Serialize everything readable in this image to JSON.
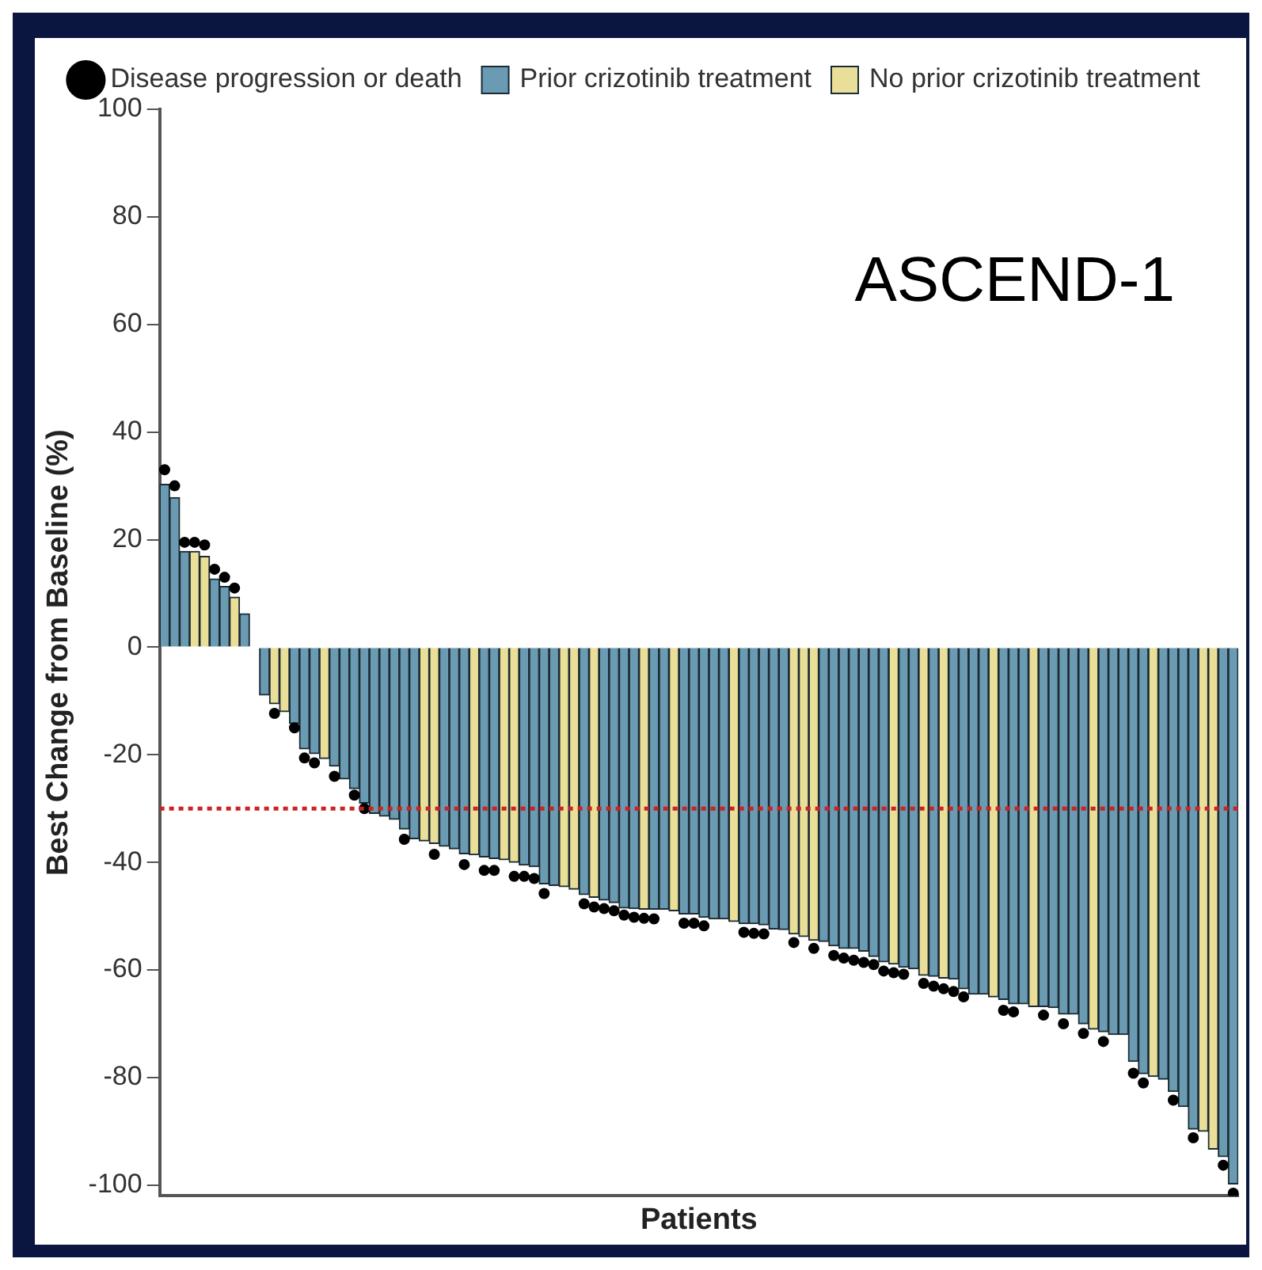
{
  "chart_data": {
    "type": "bar",
    "xlabel": "Patients",
    "ylabel": "Best Change from Baseline (%)",
    "annotations": [
      "ASCEND-1"
    ],
    "categories": [
      null,
      null,
      null,
      null,
      null,
      null,
      null,
      null,
      null,
      null,
      null,
      null,
      null,
      null,
      null,
      null,
      null,
      null,
      null,
      null,
      null,
      null,
      null,
      null,
      null,
      null,
      null,
      null,
      null,
      null,
      null,
      null,
      null,
      null,
      null,
      null,
      null,
      null,
      null,
      null,
      null,
      null,
      null,
      null,
      null,
      null,
      null,
      null,
      null,
      null,
      null,
      null,
      null,
      null,
      null,
      null,
      null,
      null,
      null,
      null,
      null,
      null,
      null,
      null,
      null,
      null,
      null,
      null,
      null,
      null,
      null,
      null,
      null,
      null,
      null,
      null,
      null,
      null,
      null,
      null,
      null,
      null,
      null,
      null,
      null,
      null,
      null,
      null,
      null,
      null,
      null,
      null,
      null,
      null,
      null,
      null,
      null,
      null,
      null,
      null,
      null,
      null,
      null,
      null,
      null,
      null,
      null,
      null
    ],
    "series": [
      {
        "name": "Prior crizotinib treatment",
        "color": "#6a9bb2",
        "values": [
          30.3,
          27.8,
          17.8,
          null,
          null,
          12.7,
          11.3,
          null,
          6.2,
          null,
          -8.9,
          null,
          null,
          -14.2,
          -18.9,
          -19.8,
          null,
          -22.1,
          -24.5,
          -26.3,
          -29,
          -30.9,
          -31.4,
          -32,
          -33.8,
          -35.6,
          null,
          null,
          -37,
          -37.5,
          -38.4,
          null,
          -39,
          -39.3,
          null,
          null,
          -40.5,
          -40.8,
          -44,
          -44.3,
          null,
          null,
          -46,
          null,
          -47,
          -47.5,
          -48.5,
          -48.6,
          null,
          -48.7,
          -48.7,
          null,
          -49.6,
          -49.6,
          -50.2,
          -50.5,
          -50.5,
          null,
          -51.4,
          -51.4,
          -51.6,
          -52.4,
          -52.5,
          null,
          null,
          null,
          -54.7,
          -55.5,
          -56,
          -56,
          -56.5,
          -57.5,
          -58.5,
          null,
          -59.5,
          -59.8,
          null,
          -61.2,
          null,
          -61.7,
          -63.5,
          -64.5,
          -64.5,
          null,
          -65.5,
          -66.3,
          -66.3,
          null,
          -66.8,
          -67,
          -68.2,
          -68.2,
          -70,
          null,
          -71.5,
          -72,
          -72,
          -77,
          -79.3,
          null,
          -80.3,
          -82.6,
          -85.4,
          -89.6,
          null,
          null,
          -94.7,
          -99.8
        ]
      },
      {
        "name": "No prior crizotinib treatment",
        "color": "#e9df98",
        "values": [
          null,
          null,
          null,
          17.8,
          16.9,
          null,
          null,
          9.3,
          null,
          null,
          null,
          -10.5,
          -12,
          null,
          null,
          null,
          -20.7,
          null,
          null,
          null,
          null,
          null,
          null,
          null,
          null,
          null,
          -36,
          -36.5,
          null,
          null,
          null,
          -38.6,
          null,
          null,
          -39.5,
          -40,
          null,
          null,
          null,
          null,
          -44.5,
          -45,
          null,
          -46.5,
          null,
          null,
          null,
          null,
          -48.7,
          null,
          null,
          -49,
          null,
          null,
          null,
          null,
          null,
          -51,
          null,
          null,
          null,
          null,
          null,
          -53.3,
          -53.8,
          -54.5,
          null,
          null,
          null,
          null,
          null,
          null,
          null,
          -58.9,
          null,
          null,
          -61,
          null,
          -61.5,
          null,
          null,
          null,
          null,
          -65,
          null,
          null,
          null,
          -66.8,
          null,
          null,
          null,
          null,
          null,
          -71,
          null,
          null,
          null,
          null,
          null,
          -79.8,
          null,
          null,
          null,
          null,
          -90,
          -93.3,
          null,
          null
        ]
      },
      {
        "name": "Disease progression or death",
        "type": "scatter",
        "color": "#000000",
        "values": [
          33,
          30,
          19.5,
          19.5,
          19,
          14.5,
          13,
          11,
          null,
          null,
          null,
          -12.3,
          null,
          -15,
          -20.6,
          -21.5,
          null,
          -24,
          null,
          -27.5,
          -30,
          null,
          null,
          null,
          -35.7,
          null,
          null,
          -38.5,
          null,
          null,
          -40.4,
          null,
          -41.5,
          -41.5,
          null,
          -42.6,
          -42.6,
          -43,
          -45.8,
          null,
          null,
          null,
          -47.7,
          -48.3,
          -48.6,
          -49,
          -49.8,
          -50.2,
          -50.4,
          -50.5,
          null,
          null,
          -51.3,
          -51.3,
          -51.8,
          null,
          null,
          null,
          -53,
          -53.2,
          -53.3,
          null,
          null,
          -54.9,
          null,
          -56,
          null,
          -57.3,
          -57.8,
          -58.2,
          -58.6,
          -59,
          -60.2,
          -60.5,
          -60.8,
          null,
          -62.5,
          -63,
          -63.5,
          -64,
          -65,
          null,
          null,
          null,
          -67.5,
          -67.8,
          null,
          null,
          -68.4,
          null,
          -70,
          null,
          -71.8,
          null,
          -73.3,
          null,
          null,
          -79.2,
          -81,
          null,
          null,
          -84.2,
          null,
          -91.2,
          null,
          null,
          -96.3,
          -101.5
        ]
      }
    ],
    "ylim": [
      -102,
      100
    ],
    "yticks": [
      -100,
      -80,
      -60,
      -40,
      -20,
      0,
      20,
      40,
      60,
      80,
      100
    ],
    "ref_lines": [
      {
        "axis": "y",
        "value": -30,
        "color": "#cc2222",
        "line_style": "dotted"
      }
    ],
    "grid": false,
    "legend": "top",
    "tick_labels": "y",
    "marker": "circle"
  }
}
